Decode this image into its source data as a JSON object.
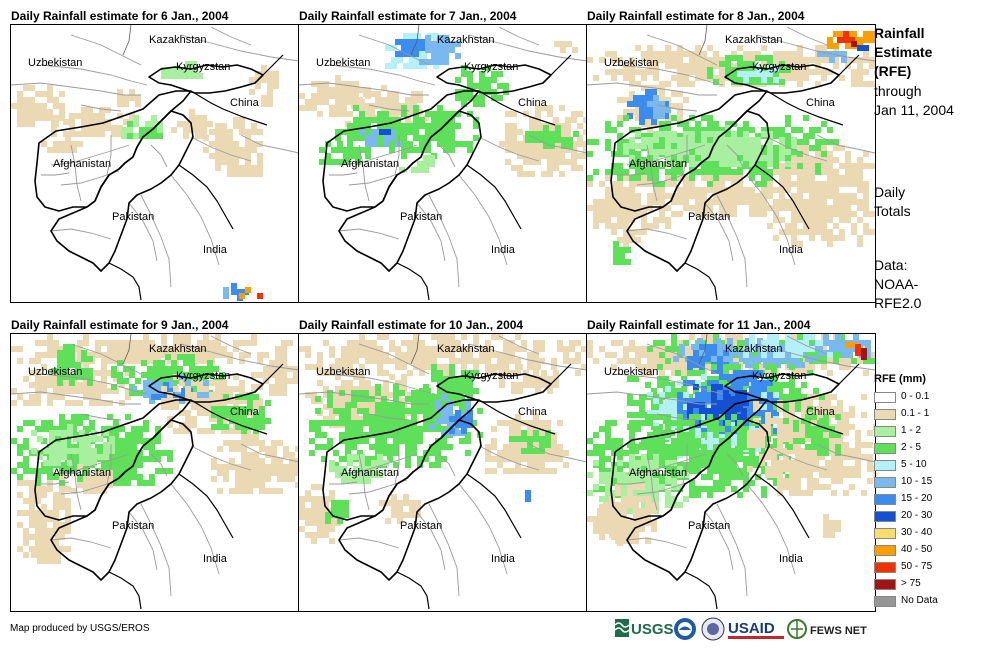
{
  "panels": [
    {
      "title": "Daily Rainfall estimate for 6 Jan., 2004"
    },
    {
      "title": "Daily Rainfall estimate for 7 Jan., 2004"
    },
    {
      "title": "Daily Rainfall estimate for 8 Jan., 2004"
    },
    {
      "title": "Daily Rainfall estimate for 9 Jan., 2004"
    },
    {
      "title": "Daily Rainfall estimate for 10 Jan., 2004"
    },
    {
      "title": "Daily Rainfall estimate for 11 Jan., 2004"
    }
  ],
  "map_labels": {
    "kazakhstan": "Kazakhstan",
    "uzbekistan": "Uzbekistan",
    "kyrgyzstan": "Kyrgyzstan",
    "china": "China",
    "afghanistan": "Afghanistan",
    "pakistan": "Pakistan",
    "india": "India"
  },
  "sidebar": {
    "heading_1": "Rainfall",
    "heading_2": "Estimate",
    "heading_3": "(RFE)",
    "through": "through",
    "date": "Jan 11, 2004",
    "totals_1": "Daily",
    "totals_2": "Totals",
    "data_1": "Data:",
    "data_2": "NOAA-",
    "data_3": "RFE2.0"
  },
  "legend": {
    "title": "RFE (mm)",
    "items": [
      {
        "label": "0 - 0.1",
        "color": "#ffffff"
      },
      {
        "label": "0.1 - 1",
        "color": "#ebd9b4"
      },
      {
        "label": "1 - 2",
        "color": "#a8f0a0"
      },
      {
        "label": "2 - 5",
        "color": "#5ee05a"
      },
      {
        "label": "5 - 10",
        "color": "#b4f0f8"
      },
      {
        "label": "10 - 15",
        "color": "#7ab8f0"
      },
      {
        "label": "15 - 20",
        "color": "#3c8cf0"
      },
      {
        "label": "20 - 30",
        "color": "#1450d2"
      },
      {
        "label": "30 - 40",
        "color": "#f8dc6e"
      },
      {
        "label": "40 - 50",
        "color": "#f8a000"
      },
      {
        "label": "50 - 75",
        "color": "#f03200"
      },
      {
        "label": "> 75",
        "color": "#a01414"
      },
      {
        "label": "No Data",
        "color": "#969696"
      }
    ]
  },
  "credit": "Map produced by USGS/EROS",
  "logos": {
    "usgs": "USGS",
    "usaid": "USAID",
    "fewsnet": "FEWS NET"
  }
}
